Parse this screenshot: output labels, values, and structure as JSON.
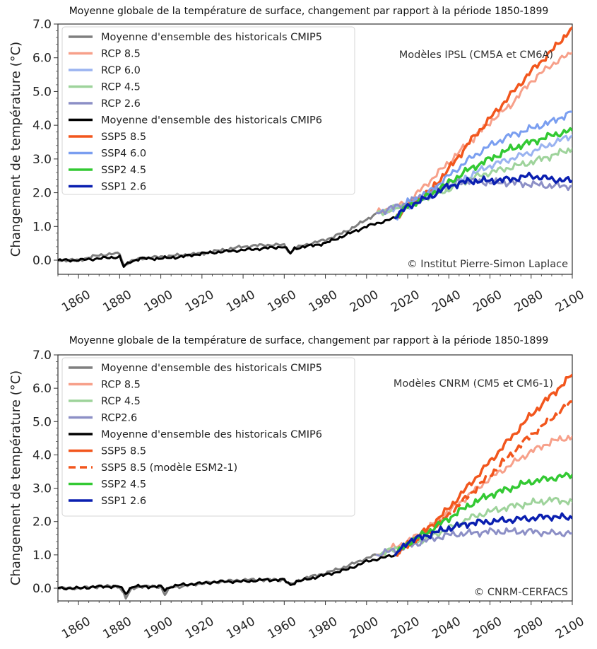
{
  "chart_data": [
    {
      "type": "line",
      "title": "Moyenne globale de la température de surface, changement par rapport à la période 1850-1899",
      "xlabel": "",
      "ylabel": "Changement de température (°C)",
      "xlim": [
        1850,
        2100
      ],
      "ylim": [
        -0.4,
        7.0
      ],
      "xticks": [
        "1860",
        "1880",
        "1900",
        "1920",
        "1940",
        "1960",
        "1980",
        "2000",
        "2020",
        "2040",
        "2060",
        "2080",
        "2100"
      ],
      "yticks": [
        "0.0",
        "1.0",
        "2.0",
        "3.0",
        "4.0",
        "5.0",
        "6.0",
        "7.0"
      ],
      "grid": false,
      "legend_position": "top-left",
      "annotation_top": "Modèles IPSL (CM5A et CM6A)",
      "annotation_bottom": "© Institut Pierre-Simon Laplace",
      "series": [
        {
          "name": "Moyenne d'ensemble des historicals CMIP5",
          "color": "#7f7f7f",
          "dash": false,
          "width": 3,
          "x": [
            1850,
            1860,
            1870,
            1880,
            1882,
            1885,
            1890,
            1900,
            1910,
            1920,
            1930,
            1940,
            1950,
            1960,
            1963,
            1965,
            1970,
            1980,
            1990,
            2000,
            2005
          ],
          "y": [
            0.0,
            0.0,
            0.15,
            0.2,
            -0.15,
            -0.05,
            0.05,
            0.1,
            0.15,
            0.2,
            0.3,
            0.4,
            0.45,
            0.45,
            0.2,
            0.35,
            0.45,
            0.6,
            0.85,
            1.2,
            1.4
          ]
        },
        {
          "name": "RCP 8.5",
          "color": "#f7a08a",
          "dash": false,
          "width": 3,
          "x": [
            2005,
            2020,
            2030,
            2040,
            2050,
            2060,
            2070,
            2080,
            2090,
            2100
          ],
          "y": [
            1.4,
            1.7,
            2.3,
            2.9,
            3.5,
            4.1,
            4.6,
            5.3,
            5.8,
            6.15
          ]
        },
        {
          "name": "RCP 6.0",
          "color": "#9ab3f0",
          "dash": false,
          "width": 3,
          "x": [
            2005,
            2020,
            2030,
            2040,
            2050,
            2060,
            2070,
            2080,
            2090,
            2100
          ],
          "y": [
            1.4,
            1.6,
            1.9,
            2.2,
            2.5,
            2.8,
            3.0,
            3.2,
            3.45,
            3.7
          ]
        },
        {
          "name": "RCP 4.5",
          "color": "#9ed39b",
          "dash": false,
          "width": 3,
          "x": [
            2005,
            2020,
            2030,
            2040,
            2050,
            2060,
            2070,
            2080,
            2090,
            2100
          ],
          "y": [
            1.4,
            1.6,
            1.9,
            2.1,
            2.4,
            2.6,
            2.75,
            2.9,
            3.1,
            3.3
          ]
        },
        {
          "name": "RCP 2.6",
          "color": "#8c8fc6",
          "dash": false,
          "width": 3,
          "x": [
            2005,
            2020,
            2030,
            2040,
            2050,
            2060,
            2070,
            2080,
            2090,
            2100
          ],
          "y": [
            1.4,
            1.7,
            2.0,
            2.3,
            2.35,
            2.3,
            2.3,
            2.25,
            2.2,
            2.2
          ]
        },
        {
          "name": "Moyenne d'ensemble des historicals CMIP6",
          "color": "#000000",
          "dash": false,
          "width": 3,
          "x": [
            1850,
            1860,
            1870,
            1880,
            1882,
            1885,
            1890,
            1900,
            1910,
            1920,
            1930,
            1940,
            1950,
            1960,
            1963,
            1965,
            1970,
            1980,
            1990,
            2000,
            2014
          ],
          "y": [
            0.0,
            0.0,
            0.05,
            0.1,
            -0.2,
            -0.05,
            0.05,
            0.05,
            0.1,
            0.2,
            0.25,
            0.3,
            0.35,
            0.4,
            0.2,
            0.35,
            0.4,
            0.5,
            0.75,
            1.0,
            1.25
          ]
        },
        {
          "name": "SSP5 8.5",
          "color": "#f2561d",
          "dash": false,
          "width": 3.5,
          "x": [
            2014,
            2020,
            2030,
            2040,
            2050,
            2060,
            2070,
            2080,
            2090,
            2100
          ],
          "y": [
            1.25,
            1.6,
            2.0,
            2.7,
            3.5,
            4.2,
            4.9,
            5.6,
            6.2,
            6.9
          ]
        },
        {
          "name": "SSP4 6.0",
          "color": "#7a9ef0",
          "dash": false,
          "width": 3,
          "x": [
            2014,
            2020,
            2030,
            2040,
            2050,
            2060,
            2070,
            2080,
            2090,
            2100
          ],
          "y": [
            1.25,
            1.7,
            2.0,
            2.5,
            3.0,
            3.4,
            3.7,
            3.9,
            4.1,
            4.4
          ]
        },
        {
          "name": "SSP2 4.5",
          "color": "#33c933",
          "dash": false,
          "width": 3.5,
          "x": [
            2014,
            2020,
            2030,
            2040,
            2050,
            2060,
            2070,
            2080,
            2090,
            2100
          ],
          "y": [
            1.25,
            1.6,
            1.9,
            2.3,
            2.7,
            3.0,
            3.3,
            3.5,
            3.7,
            3.85
          ]
        },
        {
          "name": "SSP1 2.6",
          "color": "#0a1fb0",
          "dash": false,
          "width": 3.5,
          "x": [
            2014,
            2020,
            2030,
            2040,
            2050,
            2060,
            2070,
            2080,
            2090,
            2100
          ],
          "y": [
            1.25,
            1.6,
            1.85,
            2.2,
            2.35,
            2.35,
            2.4,
            2.5,
            2.4,
            2.35
          ]
        }
      ]
    },
    {
      "type": "line",
      "title": "Moyenne globale de la température de surface, changement par rapport à la période 1850-1899",
      "xlabel": "",
      "ylabel": "Changement de température (°C)",
      "xlim": [
        1850,
        2100
      ],
      "ylim": [
        -0.4,
        7.0
      ],
      "xticks": [
        "1860",
        "1880",
        "1900",
        "1920",
        "1940",
        "1960",
        "1980",
        "2000",
        "2020",
        "2040",
        "2060",
        "2080",
        "2100"
      ],
      "yticks": [
        "0.0",
        "1.0",
        "2.0",
        "3.0",
        "4.0",
        "5.0",
        "6.0",
        "7.0"
      ],
      "grid": false,
      "legend_position": "top-left",
      "annotation_top": "Modèles CNRM (CM5 et CM6-1)",
      "annotation_bottom": "© CNRM-CERFACS",
      "series": [
        {
          "name": "Moyenne d'ensemble des historicals CMIP5",
          "color": "#7f7f7f",
          "dash": false,
          "width": 3,
          "x": [
            1850,
            1860,
            1870,
            1880,
            1883,
            1886,
            1890,
            1900,
            1902,
            1905,
            1910,
            1920,
            1930,
            1940,
            1950,
            1960,
            1963,
            1966,
            1970,
            1980,
            1990,
            2000,
            2005
          ],
          "y": [
            0.0,
            0.0,
            0.05,
            0.05,
            -0.3,
            0.0,
            0.05,
            0.05,
            -0.2,
            0.05,
            0.05,
            0.15,
            0.2,
            0.25,
            0.25,
            0.25,
            0.1,
            0.2,
            0.3,
            0.45,
            0.65,
            0.9,
            1.0
          ]
        },
        {
          "name": "RCP 8.5",
          "color": "#f7a08a",
          "dash": false,
          "width": 3,
          "x": [
            2005,
            2020,
            2030,
            2040,
            2050,
            2060,
            2070,
            2080,
            2090,
            2100
          ],
          "y": [
            1.0,
            1.4,
            1.8,
            2.3,
            2.8,
            3.3,
            3.7,
            4.1,
            4.4,
            4.55
          ]
        },
        {
          "name": "RCP 4.5",
          "color": "#9ed39b",
          "dash": false,
          "width": 3,
          "x": [
            2005,
            2020,
            2030,
            2040,
            2050,
            2060,
            2070,
            2080,
            2090,
            2100
          ],
          "y": [
            1.0,
            1.3,
            1.5,
            1.8,
            2.1,
            2.3,
            2.45,
            2.55,
            2.65,
            2.6
          ]
        },
        {
          "name": "RCP2.6",
          "color": "#8c8fc6",
          "dash": false,
          "width": 3,
          "x": [
            2005,
            2020,
            2030,
            2040,
            2050,
            2060,
            2070,
            2080,
            2090,
            2100
          ],
          "y": [
            1.0,
            1.25,
            1.45,
            1.6,
            1.65,
            1.7,
            1.7,
            1.7,
            1.65,
            1.65
          ]
        },
        {
          "name": "Moyenne d'ensemble des historicals CMIP6",
          "color": "#000000",
          "dash": false,
          "width": 3,
          "x": [
            1850,
            1860,
            1870,
            1880,
            1883,
            1886,
            1890,
            1900,
            1902,
            1905,
            1910,
            1920,
            1930,
            1940,
            1950,
            1960,
            1963,
            1966,
            1970,
            1980,
            1990,
            2000,
            2014
          ],
          "y": [
            0.0,
            0.0,
            0.05,
            0.05,
            -0.15,
            0.05,
            0.05,
            0.05,
            -0.05,
            0.05,
            0.1,
            0.15,
            0.2,
            0.2,
            0.25,
            0.25,
            0.1,
            0.2,
            0.25,
            0.4,
            0.55,
            0.8,
            1.0
          ]
        },
        {
          "name": "SSP5 8.5",
          "color": "#f2561d",
          "dash": false,
          "width": 3.5,
          "x": [
            2014,
            2020,
            2030,
            2040,
            2050,
            2060,
            2070,
            2080,
            2090,
            2100
          ],
          "y": [
            1.0,
            1.3,
            1.8,
            2.4,
            3.1,
            3.8,
            4.5,
            5.2,
            5.8,
            6.4
          ]
        },
        {
          "name": "SSP5 8.5 (modèle ESM2-1)",
          "color": "#f2561d",
          "dash": true,
          "width": 3.5,
          "x": [
            2014,
            2020,
            2030,
            2040,
            2050,
            2060,
            2070,
            2080,
            2090,
            2100
          ],
          "y": [
            1.0,
            1.3,
            1.7,
            2.2,
            2.8,
            3.4,
            4.0,
            4.6,
            5.1,
            5.6
          ]
        },
        {
          "name": "SSP2 4.5",
          "color": "#33c933",
          "dash": false,
          "width": 3.5,
          "x": [
            2014,
            2020,
            2030,
            2040,
            2050,
            2060,
            2070,
            2080,
            2090,
            2100
          ],
          "y": [
            1.0,
            1.35,
            1.7,
            2.1,
            2.5,
            2.8,
            3.0,
            3.2,
            3.3,
            3.4
          ]
        },
        {
          "name": "SSP1 2.6",
          "color": "#0a1fb0",
          "dash": false,
          "width": 3.5,
          "x": [
            2014,
            2020,
            2030,
            2040,
            2050,
            2060,
            2070,
            2080,
            2090,
            2100
          ],
          "y": [
            1.0,
            1.4,
            1.6,
            1.8,
            1.95,
            2.0,
            2.05,
            2.1,
            2.15,
            2.1
          ]
        }
      ]
    }
  ]
}
